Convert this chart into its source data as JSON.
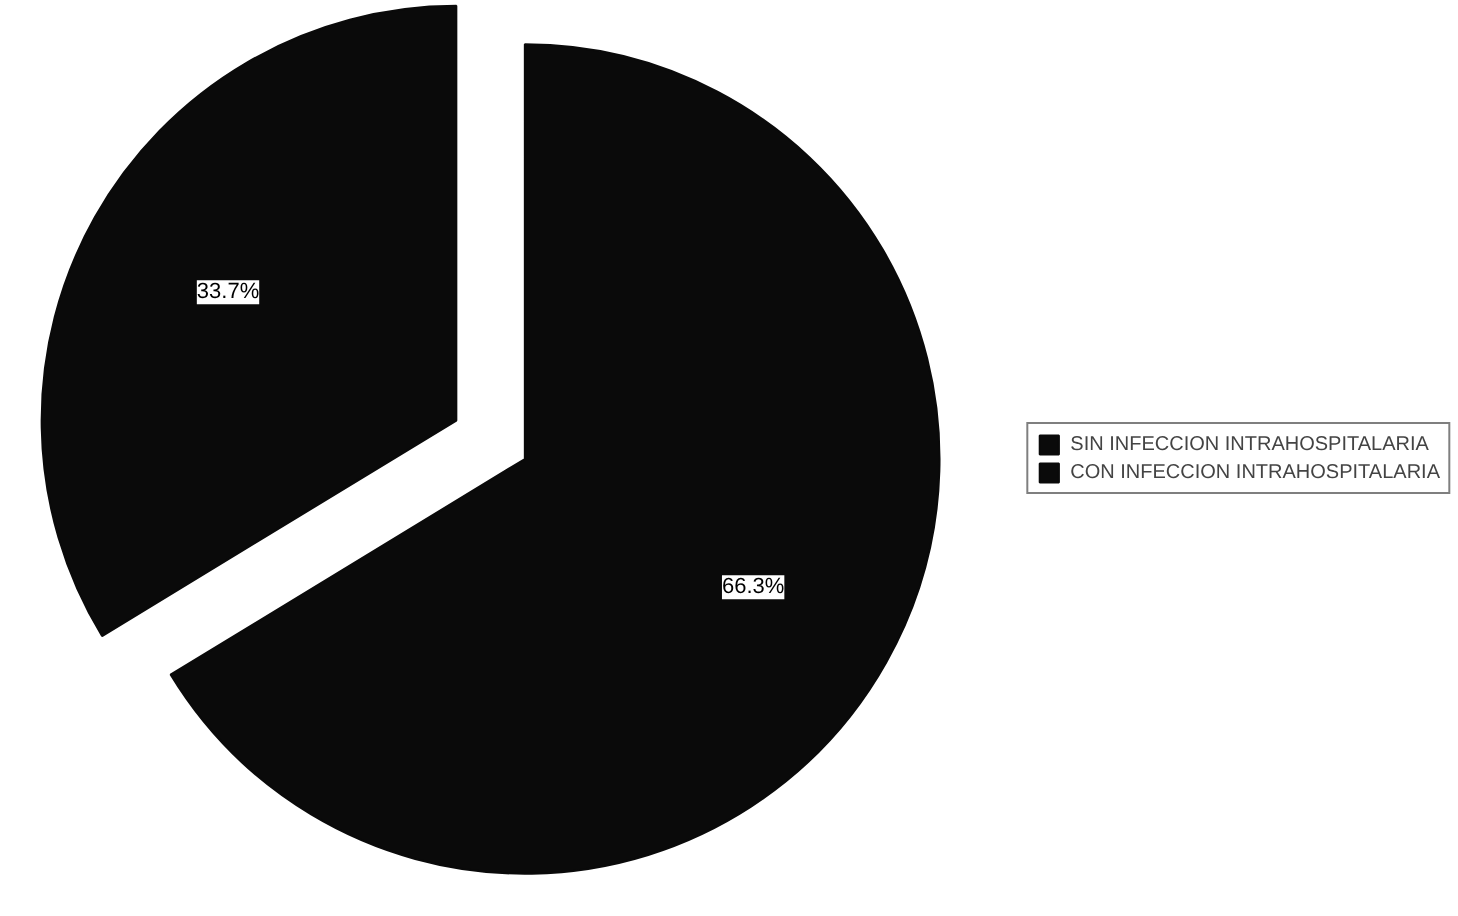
{
  "chart_data": {
    "type": "pie",
    "categories": [
      "SIN INFECCION INTRAHOSPITALARIA",
      "CON INFECCION INTRAHOSPITALARIA"
    ],
    "values": [
      66.3,
      33.7
    ],
    "value_labels": [
      "66.3%",
      "33.7%"
    ],
    "colors": [
      "#0a0a0a",
      "#0a0a0a"
    ],
    "legend": "right"
  }
}
